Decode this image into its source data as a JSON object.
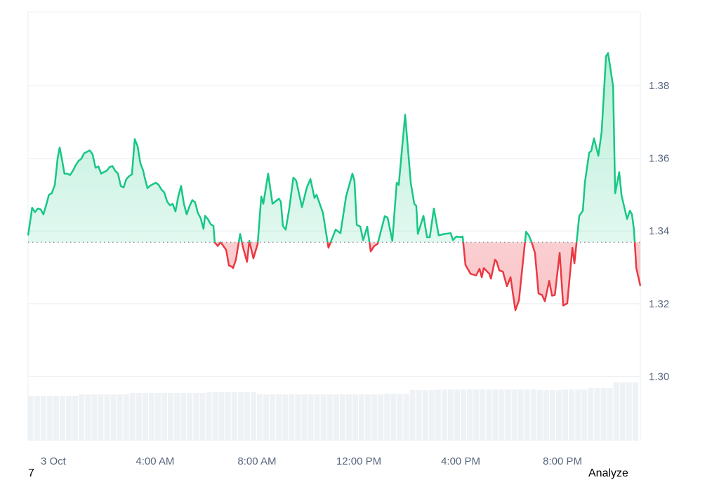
{
  "chart_data": {
    "type": "area",
    "title": "",
    "xlabel": "",
    "ylabel": "",
    "x_unit": "hours since 3 Oct 00:00",
    "xlim": [
      -0.99,
      23.06
    ],
    "ylim": [
      1.2823,
      1.4003
    ],
    "baseline": 1.3369,
    "grid": true,
    "y_ticks": [
      1.3,
      1.32,
      1.34,
      1.36,
      1.38
    ],
    "y_tick_labels": [
      "1.30",
      "1.32",
      "1.34",
      "1.36",
      "1.38"
    ],
    "x_ticks": [
      0,
      4,
      8,
      12,
      16,
      20
    ],
    "x_tick_labels": [
      "3 Oct",
      "4:00 AM",
      "8:00 AM",
      "12:00 PM",
      "4:00 PM",
      "8:00 PM"
    ],
    "colors": {
      "up": "#16c784",
      "down": "#ea3943",
      "grid": "#eff2f5",
      "volume": "#eff2f5",
      "baseline": "#808a9d"
    },
    "series": [
      {
        "name": "price",
        "x": [
          -0.99,
          -0.83,
          -0.72,
          -0.61,
          -0.5,
          -0.39,
          -0.28,
          -0.17,
          -0.06,
          0.06,
          0.17,
          0.25,
          0.33,
          0.44,
          0.55,
          0.66,
          0.77,
          0.88,
          0.99,
          1.1,
          1.21,
          1.32,
          1.43,
          1.54,
          1.66,
          1.77,
          1.88,
          1.99,
          2.1,
          2.21,
          2.32,
          2.43,
          2.54,
          2.65,
          2.76,
          2.87,
          2.98,
          3.09,
          3.2,
          3.31,
          3.42,
          3.53,
          3.59,
          3.7,
          3.81,
          3.92,
          4.03,
          4.14,
          4.25,
          4.36,
          4.47,
          4.58,
          4.69,
          4.8,
          4.91,
          5.02,
          5.13,
          5.24,
          5.35,
          5.46,
          5.57,
          5.68,
          5.79,
          5.9,
          5.96,
          6.07,
          6.18,
          6.29,
          6.34,
          6.46,
          6.57,
          6.68,
          6.79,
          6.9,
          7.01,
          7.06,
          7.17,
          7.34,
          7.45,
          7.61,
          7.7,
          7.86,
          8.03,
          8.17,
          8.25,
          8.44,
          8.61,
          8.86,
          8.94,
          9.02,
          9.13,
          9.27,
          9.43,
          9.54,
          9.77,
          9.96,
          10.1,
          10.26,
          10.34,
          10.59,
          10.81,
          11.09,
          11.28,
          11.5,
          11.75,
          11.83,
          11.92,
          12.06,
          12.17,
          12.33,
          12.47,
          12.61,
          12.74,
          13.02,
          13.13,
          13.32,
          13.49,
          13.57,
          13.82,
          14.04,
          14.18,
          14.26,
          14.32,
          14.54,
          14.68,
          14.79,
          14.95,
          15.14,
          15.37,
          15.61,
          15.7,
          15.83,
          15.97,
          16.08,
          16.19,
          16.39,
          16.61,
          16.74,
          16.83,
          16.91,
          17.13,
          17.19,
          17.35,
          17.41,
          17.52,
          17.66,
          17.82,
          17.96,
          18.15,
          18.29,
          18.57,
          18.68,
          18.79,
          18.92,
          19.06,
          19.2,
          19.31,
          19.48,
          19.59,
          19.7,
          19.89,
          20.03,
          20.19,
          20.39,
          20.47,
          20.66,
          20.8,
          20.88,
          21.05,
          21.13,
          21.24,
          21.41,
          21.54,
          21.71,
          21.79,
          21.99,
          22.07,
          22.23,
          22.32,
          22.54,
          22.65,
          22.73,
          22.81,
          22.9,
          23.06
        ],
        "y": [
          1.3388,
          1.3464,
          1.3452,
          1.3462,
          1.346,
          1.3446,
          1.3471,
          1.35,
          1.3504,
          1.3527,
          1.3601,
          1.363,
          1.3601,
          1.3558,
          1.3558,
          1.3554,
          1.3566,
          1.3581,
          1.3593,
          1.3599,
          1.3614,
          1.3618,
          1.3622,
          1.3612,
          1.3574,
          1.3578,
          1.3558,
          1.3562,
          1.3566,
          1.3576,
          1.3579,
          1.3566,
          1.3558,
          1.3524,
          1.352,
          1.3543,
          1.3551,
          1.3556,
          1.3653,
          1.3634,
          1.3587,
          1.3566,
          1.3547,
          1.3518,
          1.3525,
          1.3529,
          1.3533,
          1.3527,
          1.3514,
          1.3506,
          1.3481,
          1.3471,
          1.3475,
          1.3454,
          1.3495,
          1.3524,
          1.3475,
          1.3446,
          1.3468,
          1.3485,
          1.3479,
          1.345,
          1.3435,
          1.3406,
          1.3442,
          1.3433,
          1.3419,
          1.3414,
          1.3369,
          1.3359,
          1.3369,
          1.3359,
          1.3348,
          1.3305,
          1.3302,
          1.3298,
          1.3321,
          1.3392,
          1.3356,
          1.3315,
          1.3373,
          1.3325,
          1.3365,
          1.3495,
          1.3475,
          1.3558,
          1.3475,
          1.3489,
          1.3481,
          1.3414,
          1.3404,
          1.3462,
          1.3547,
          1.3539,
          1.3466,
          1.352,
          1.3543,
          1.3491,
          1.35,
          1.345,
          1.3354,
          1.3404,
          1.3394,
          1.3495,
          1.3558,
          1.3539,
          1.3417,
          1.3412,
          1.3375,
          1.3412,
          1.3344,
          1.3359,
          1.3365,
          1.3441,
          1.3437,
          1.3373,
          1.3533,
          1.3527,
          1.372,
          1.3533,
          1.3475,
          1.3469,
          1.3392,
          1.3442,
          1.3383,
          1.3383,
          1.3462,
          1.3388,
          1.3392,
          1.3394,
          1.3375,
          1.3385,
          1.3383,
          1.3385,
          1.3307,
          1.3282,
          1.3278,
          1.3296,
          1.3273,
          1.3298,
          1.3282,
          1.3269,
          1.3321,
          1.3317,
          1.3292,
          1.3288,
          1.3248,
          1.3273,
          1.3182,
          1.3209,
          1.3398,
          1.3388,
          1.3369,
          1.334,
          1.3228,
          1.3224,
          1.3207,
          1.3263,
          1.3222,
          1.3224,
          1.334,
          1.3195,
          1.3201,
          1.3354,
          1.3311,
          1.3442,
          1.3456,
          1.3533,
          1.3616,
          1.362,
          1.3655,
          1.3607,
          1.3674,
          1.3881,
          1.389,
          1.3798,
          1.3504,
          1.3562,
          1.3498,
          1.3433,
          1.3456,
          1.3446,
          1.3404,
          1.3298,
          1.3249
        ]
      }
    ],
    "volume": {
      "x_start_hours": [
        -1,
        0,
        1,
        2,
        3,
        4,
        5,
        6,
        7,
        8,
        9,
        10,
        11,
        12,
        13,
        14,
        15,
        16,
        17,
        18,
        19,
        20,
        21,
        22
      ],
      "relative": [
        64,
        64,
        66,
        66,
        68,
        68,
        68,
        69,
        69,
        66,
        66,
        66,
        66,
        66,
        67,
        72,
        73,
        73,
        73,
        73,
        72,
        73,
        75,
        83
      ],
      "relative_max": 91
    }
  },
  "footer": {
    "left_text": "7",
    "right_text": "Analyze"
  }
}
